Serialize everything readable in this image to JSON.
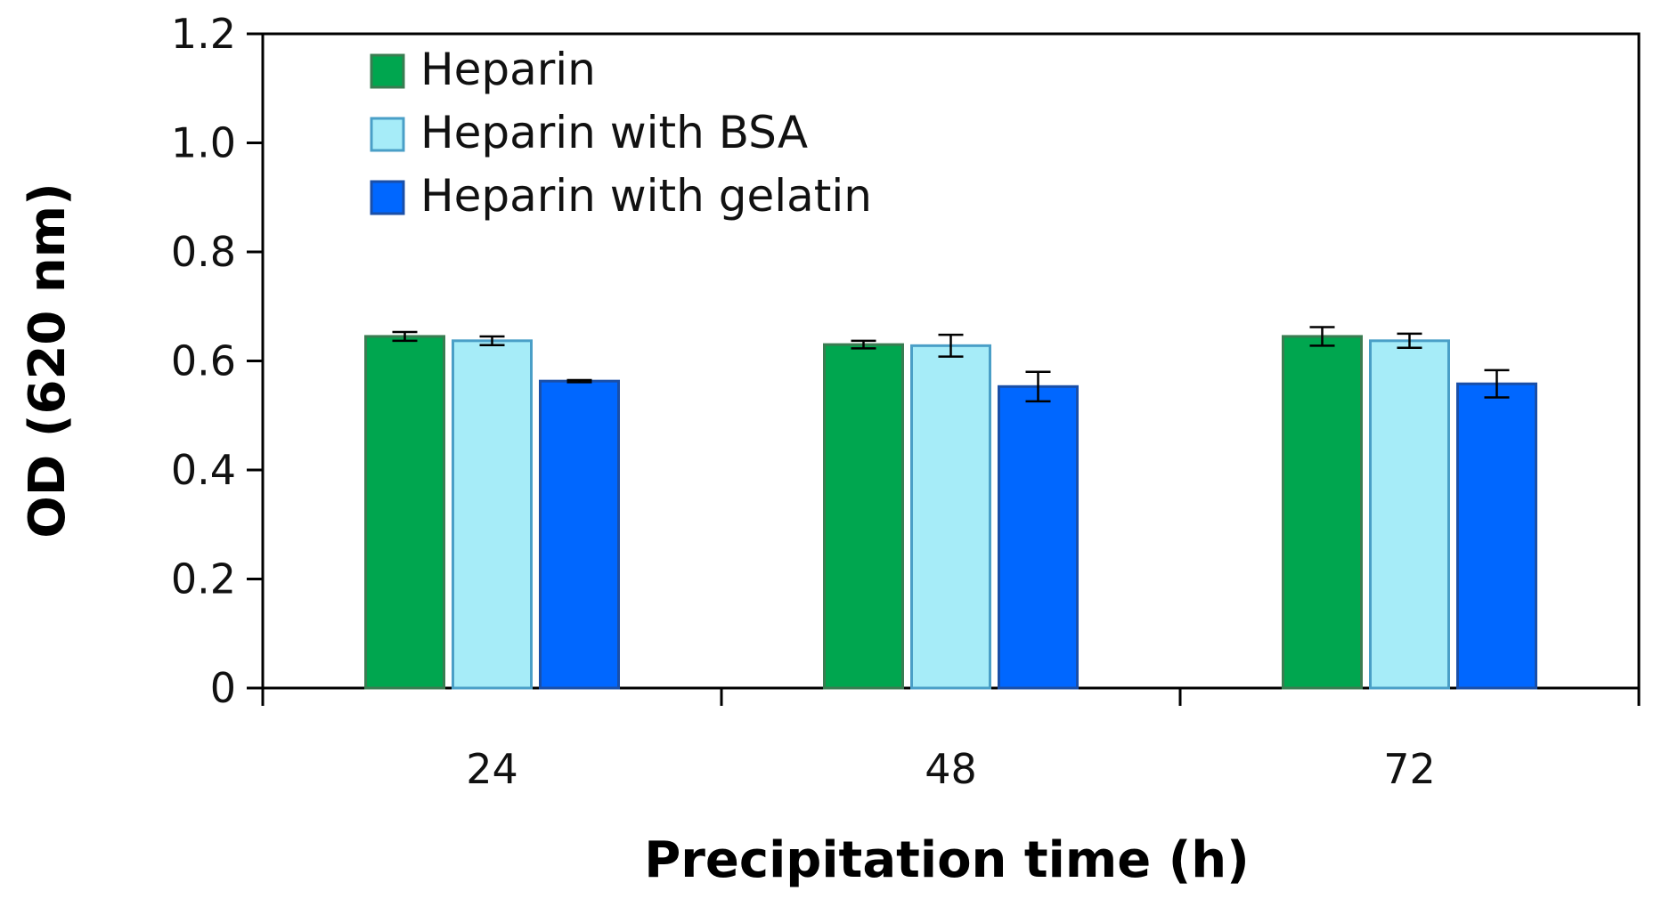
{
  "chart_data": {
    "type": "bar",
    "title": "",
    "xlabel": "Precipitation time (h)",
    "ylabel": "OD (620 nm)",
    "categories": [
      "24",
      "48",
      "72"
    ],
    "ylim": [
      0,
      1.2
    ],
    "yticks": [
      0,
      0.2,
      0.4,
      0.6,
      0.8,
      1.0,
      1.2
    ],
    "ytick_labels": [
      "0",
      "0.2",
      "0.4",
      "0.6",
      "0.8",
      "1.0",
      "1.2"
    ],
    "grid": false,
    "legend_position": "top-left",
    "series": [
      {
        "name": "Heparin",
        "color": "#00a64f",
        "edge_color": "#3a7d52",
        "values": [
          0.645,
          0.63,
          0.645
        ],
        "errors": [
          0.008,
          0.007,
          0.017
        ]
      },
      {
        "name": "Heparin with BSA",
        "color": "#a6ecf8",
        "edge_color": "#4a9fc7",
        "values": [
          0.637,
          0.628,
          0.637
        ],
        "errors": [
          0.008,
          0.02,
          0.013
        ]
      },
      {
        "name": "Heparin with gelatin",
        "color": "#0067ff",
        "edge_color": "#1a4fa8",
        "values": [
          0.563,
          0.553,
          0.558
        ],
        "errors": [
          0.002,
          0.027,
          0.025
        ]
      }
    ]
  }
}
